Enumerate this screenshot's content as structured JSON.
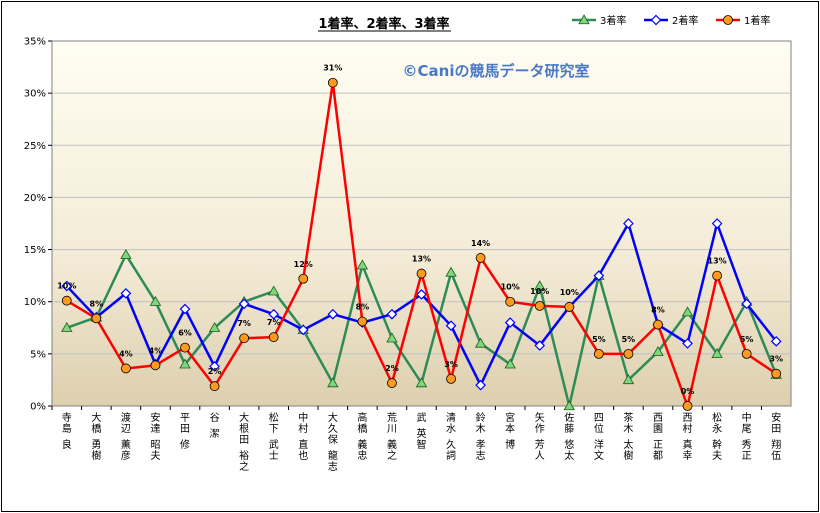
{
  "chart_data": {
    "type": "line",
    "title": "1着率、2着率、3着率",
    "watermark": "©Caniの競馬データ研究室",
    "xlabel": "",
    "ylabel": "",
    "ylim": [
      0,
      35
    ],
    "y_ticks": [
      "0%",
      "5%",
      "10%",
      "15%",
      "20%",
      "25%",
      "30%",
      "35%"
    ],
    "grid": true,
    "legend_position": "top-right",
    "categories": [
      "寺島 良",
      "大橋 勇樹",
      "渡辺 薫彦",
      "安達 昭夫",
      "平田 修",
      "谷 潔",
      "大根田 裕之",
      "松下 武士",
      "中村 直也",
      "大久保 龍志",
      "高橋 義忠",
      "荒川 義之",
      "武 英智",
      "清水 久詞",
      "鈴木 孝志",
      "宮本 博",
      "矢作 芳人",
      "佐藤 悠太",
      "四位 洋文",
      "茶木 太樹",
      "西園 正都",
      "西村 真幸",
      "松永 幹夫",
      "中尾 秀正",
      "安田 翔伍"
    ],
    "series": [
      {
        "name": "3着率",
        "color": "#2e8b57",
        "marker": "triangle",
        "values": [
          7.5,
          8.5,
          14.5,
          10.0,
          4.0,
          7.5,
          10.0,
          11.0,
          7.3,
          2.2,
          13.5,
          6.5,
          2.2,
          12.8,
          6.0,
          4.0,
          11.5,
          0.0,
          12.5,
          2.5,
          5.2,
          9.0,
          5.0,
          10.0,
          3.0
        ]
      },
      {
        "name": "2着率",
        "color": "#0000ff",
        "marker": "diamond",
        "values": [
          11.5,
          8.5,
          10.8,
          4.0,
          9.3,
          3.8,
          9.8,
          8.8,
          7.3,
          8.8,
          8.0,
          8.8,
          10.7,
          7.7,
          2.0,
          8.0,
          5.8,
          9.5,
          12.5,
          17.5,
          7.8,
          6.0,
          17.5,
          9.8,
          6.2
        ]
      },
      {
        "name": "1着率",
        "color": "#ff0000",
        "marker": "circle",
        "values": [
          10.1,
          8.4,
          3.6,
          3.9,
          5.6,
          1.9,
          6.5,
          6.6,
          12.2,
          31.0,
          8.1,
          2.2,
          12.7,
          2.6,
          14.2,
          10.0,
          9.6,
          9.5,
          5.0,
          5.0,
          7.8,
          0.0,
          12.5,
          5.0,
          3.1
        ]
      }
    ],
    "data_labels": [
      "10%",
      "8%",
      "4%",
      "4%",
      "6%",
      "2%",
      "7%",
      "7%",
      "12%",
      "31%",
      "8%",
      "2%",
      "13%",
      "3%",
      "14%",
      "10%",
      "10%",
      "10%",
      "5%",
      "5%",
      "8%",
      "0%",
      "13%",
      "5%",
      "3%"
    ]
  }
}
